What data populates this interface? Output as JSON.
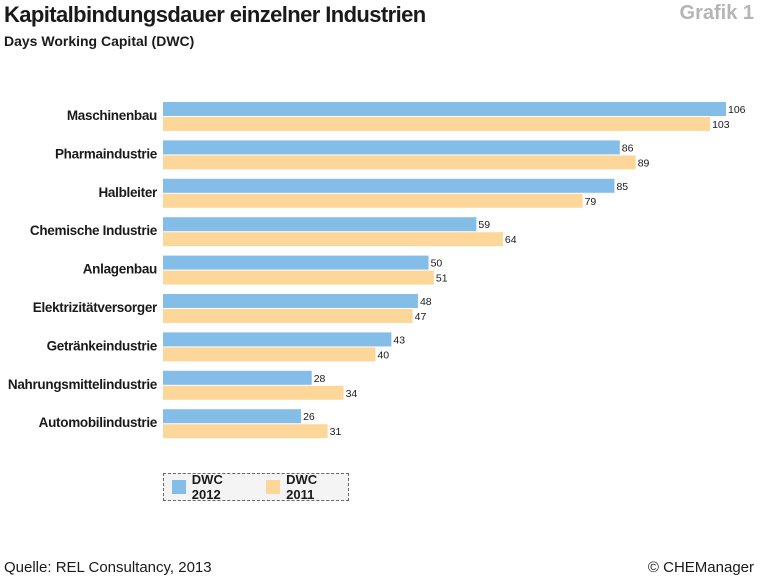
{
  "header": {
    "title": "Kapitalbindungsdauer einzelner Industrien",
    "subtitle": "Days Working Capital (DWC)",
    "figure_label": "Grafik 1"
  },
  "footer": {
    "source": "Quelle: REL Consultancy, 2013",
    "copyright": "© CHEManager"
  },
  "chart_data": {
    "type": "bar",
    "orientation": "horizontal",
    "title": "Kapitalbindungsdauer einzelner Industrien",
    "subtitle": "Days Working Capital (DWC)",
    "categories": [
      "Maschinenbau",
      "Pharmaindustrie",
      "Halbleiter",
      "Chemische Industrie",
      "Anlagenbau",
      "Elektrizitätversorger",
      "Getränkeindustrie",
      "Nahrungsmittelindustrie",
      "Automobilindustrie"
    ],
    "series": [
      {
        "name": "DWC 2012",
        "color": "#85bde9",
        "values": [
          106,
          86,
          85,
          59,
          50,
          48,
          43,
          28,
          26
        ]
      },
      {
        "name": "DWC 2011",
        "color": "#fdd799",
        "values": [
          103,
          89,
          79,
          64,
          51,
          47,
          40,
          34,
          31
        ]
      }
    ],
    "xlim": [
      0,
      106
    ],
    "grid": false,
    "legend_position": "bottom-left"
  }
}
